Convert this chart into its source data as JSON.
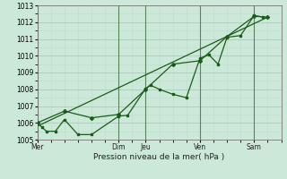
{
  "xlabel": "Pression niveau de la mer( hPa )",
  "bg_color": "#cce8d8",
  "grid_color_major": "#aaccbc",
  "grid_color_minor": "#bbddc8",
  "line_color": "#1a5c1a",
  "sep_color": "#336633",
  "ylim": [
    1005,
    1013
  ],
  "xlim": [
    0,
    54
  ],
  "yticks": [
    1005,
    1006,
    1007,
    1008,
    1009,
    1010,
    1011,
    1012,
    1013
  ],
  "day_labels": [
    "Mer",
    "Dim",
    "Jeu",
    "Ven",
    "Sam"
  ],
  "day_positions": [
    0,
    18,
    24,
    36,
    48
  ],
  "series1_x": [
    0,
    1,
    2,
    4,
    6,
    9,
    12,
    18,
    20,
    24,
    25,
    27,
    30,
    33,
    36,
    38,
    40,
    42,
    45,
    48,
    50
  ],
  "series1_y": [
    1006.0,
    1005.75,
    1005.5,
    1005.5,
    1006.2,
    1005.3,
    1005.3,
    1006.4,
    1006.45,
    1008.05,
    1008.25,
    1008.0,
    1007.7,
    1007.5,
    1009.85,
    1010.05,
    1009.5,
    1011.1,
    1011.2,
    1012.4,
    1012.3
  ],
  "series2_x": [
    0,
    6,
    12,
    18,
    24,
    30,
    36,
    42,
    48,
    51
  ],
  "series2_y": [
    1006.0,
    1006.7,
    1006.3,
    1006.5,
    1008.0,
    1009.5,
    1009.7,
    1011.15,
    1012.35,
    1012.3
  ],
  "trend_x": [
    0,
    51
  ],
  "trend_y": [
    1005.8,
    1012.3
  ]
}
